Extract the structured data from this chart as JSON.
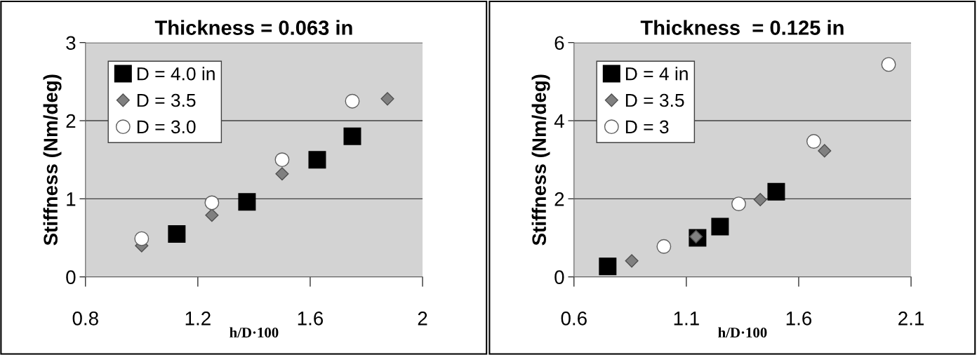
{
  "chart_data": [
    {
      "type": "scatter",
      "title": "Thickness = 0.063 in",
      "xlabel": "h/D·100",
      "ylabel": "Stiffness (Nm/deg)",
      "xlim": [
        0.8,
        2
      ],
      "xticks": [
        0.8,
        1.2,
        1.6,
        2
      ],
      "ylim": [
        0,
        3
      ],
      "yticks": [
        0,
        1,
        2,
        3
      ],
      "grid": "y",
      "legend": "top left",
      "series": [
        {
          "name": "D = 4.0 in",
          "color": "#000000",
          "marker": "square",
          "x": [
            1.125,
            1.375,
            1.625,
            1.75
          ],
          "values": [
            0.55,
            0.96,
            1.5,
            1.8
          ]
        },
        {
          "name": "D = 3.5",
          "color": "#808080",
          "marker": "diamond",
          "x": [
            1.0,
            1.25,
            1.5,
            1.875
          ],
          "values": [
            0.4,
            0.79,
            1.32,
            2.28
          ]
        },
        {
          "name": "D = 3.0",
          "color": "#ffffff",
          "marker": "circle",
          "x": [
            1.0,
            1.25,
            1.5,
            1.75
          ],
          "values": [
            0.49,
            0.95,
            1.5,
            2.25
          ]
        }
      ]
    },
    {
      "type": "scatter",
      "title": "Thickness  = 0.125 in",
      "xlabel": "h/D·100",
      "ylabel": "Stiffness (Nm/deg)",
      "xlim": [
        0.6,
        2.1
      ],
      "xticks": [
        0.6,
        1.1,
        1.6,
        2.1
      ],
      "ylim": [
        0,
        6
      ],
      "yticks": [
        0,
        2,
        4,
        6
      ],
      "grid": "y",
      "legend": "top left",
      "series": [
        {
          "name": "D = 4 in",
          "color": "#000000",
          "marker": "square",
          "x": [
            0.75,
            1.15,
            1.25,
            1.5
          ],
          "values": [
            0.27,
            1.0,
            1.29,
            2.18
          ]
        },
        {
          "name": "D = 3.5",
          "color": "#808080",
          "marker": "diamond",
          "x": [
            0.857,
            1.143,
            1.429,
            1.715
          ],
          "values": [
            0.41,
            1.03,
            1.98,
            3.23
          ]
        },
        {
          "name": "D = 3",
          "color": "#ffffff",
          "marker": "circle",
          "x": [
            1.0,
            1.333,
            1.667,
            2.0
          ],
          "values": [
            0.78,
            1.87,
            3.47,
            5.44
          ]
        }
      ]
    }
  ]
}
